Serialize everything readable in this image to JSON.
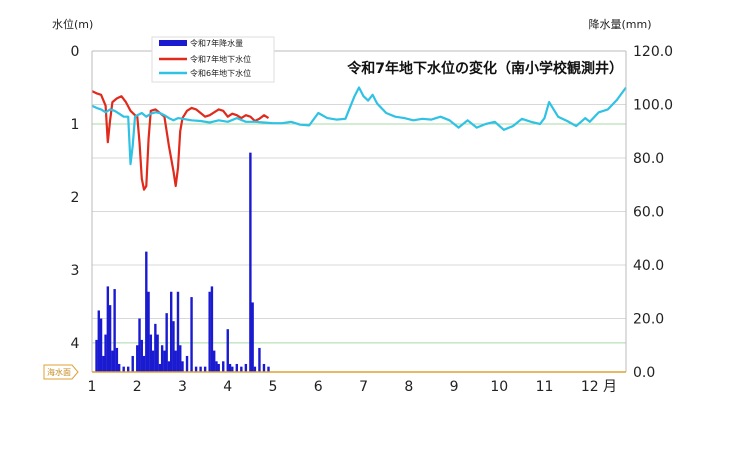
{
  "chart_data": {
    "type": "line",
    "title": "令和7年地下水位の変化（南小学校観測井）",
    "left_axis": {
      "label": "水位(m)",
      "range": [
        0,
        4.4
      ],
      "inverted": true,
      "ticks": [
        "0",
        "1",
        "2",
        "3",
        "4"
      ]
    },
    "right_axis": {
      "label": "降水量(mm)",
      "range": [
        0,
        120
      ],
      "ticks": [
        "0.0",
        "20.0",
        "40.0",
        "60.0",
        "80.0",
        "100.0",
        "120.0"
      ]
    },
    "x_axis": {
      "ticks": [
        "1",
        "2",
        "3",
        "4",
        "5",
        "6",
        "7",
        "8",
        "9",
        "10",
        "11",
        "12"
      ],
      "unit": "月"
    },
    "sea_level_label": "海水面",
    "grid": true,
    "legend": {
      "position": "top-left",
      "entries": [
        {
          "name": "令和7年降水量",
          "color": "#1a1ad0",
          "kind": "bar"
        },
        {
          "name": "令和7年地下水位",
          "color": "#e02a1c",
          "kind": "line"
        },
        {
          "name": "令和6年地下水位",
          "color": "#2fc2e4",
          "kind": "line"
        }
      ]
    },
    "series": [
      {
        "name": "令和7年地下水位",
        "color": "#e02a1c",
        "axis": "left",
        "x": [
          1.0,
          1.1,
          1.2,
          1.3,
          1.35,
          1.4,
          1.45,
          1.55,
          1.65,
          1.75,
          1.85,
          1.95,
          2.0,
          2.05,
          2.1,
          2.15,
          2.2,
          2.25,
          2.3,
          2.4,
          2.5,
          2.6,
          2.7,
          2.8,
          2.85,
          2.9,
          2.95,
          3.0,
          3.1,
          3.2,
          3.3,
          3.4,
          3.5,
          3.6,
          3.7,
          3.8,
          3.9,
          4.0,
          4.1,
          4.2,
          4.3,
          4.4,
          4.5,
          4.6,
          4.7,
          4.8,
          4.9
        ],
        "values": [
          0.55,
          0.58,
          0.6,
          0.75,
          1.25,
          0.95,
          0.7,
          0.65,
          0.62,
          0.7,
          0.82,
          0.88,
          0.9,
          1.25,
          1.75,
          1.9,
          1.85,
          1.2,
          0.82,
          0.8,
          0.85,
          0.9,
          1.3,
          1.65,
          1.85,
          1.6,
          1.1,
          0.92,
          0.82,
          0.78,
          0.8,
          0.85,
          0.9,
          0.88,
          0.84,
          0.8,
          0.82,
          0.9,
          0.86,
          0.88,
          0.92,
          0.88,
          0.9,
          0.96,
          0.93,
          0.88,
          0.92
        ]
      },
      {
        "name": "令和6年地下水位",
        "color": "#2fc2e4",
        "axis": "left",
        "x": [
          1.0,
          1.1,
          1.2,
          1.3,
          1.4,
          1.5,
          1.6,
          1.7,
          1.8,
          1.85,
          1.9,
          1.95,
          2.0,
          2.1,
          2.2,
          2.3,
          2.4,
          2.5,
          2.6,
          2.7,
          2.8,
          2.9,
          3.0,
          3.2,
          3.4,
          3.6,
          3.8,
          4.0,
          4.2,
          4.4,
          4.6,
          4.8,
          5.0,
          5.2,
          5.4,
          5.6,
          5.8,
          6.0,
          6.2,
          6.4,
          6.6,
          6.8,
          6.9,
          7.0,
          7.1,
          7.2,
          7.3,
          7.5,
          7.7,
          7.9,
          8.1,
          8.3,
          8.5,
          8.7,
          8.9,
          9.1,
          9.3,
          9.5,
          9.7,
          9.9,
          10.1,
          10.3,
          10.5,
          10.7,
          10.9,
          11.0,
          11.1,
          11.3,
          11.5,
          11.7,
          11.9,
          12.0,
          12.2,
          12.4,
          12.6,
          12.8
        ],
        "values": [
          0.75,
          0.78,
          0.8,
          0.84,
          0.8,
          0.82,
          0.86,
          0.9,
          0.9,
          1.55,
          1.3,
          0.9,
          0.88,
          0.85,
          0.9,
          0.86,
          0.84,
          0.85,
          0.88,
          0.92,
          0.95,
          0.92,
          0.93,
          0.95,
          0.96,
          0.98,
          0.95,
          0.97,
          0.92,
          0.97,
          0.97,
          0.98,
          0.99,
          0.99,
          0.97,
          1.01,
          1.02,
          0.85,
          0.92,
          0.94,
          0.93,
          0.62,
          0.5,
          0.62,
          0.68,
          0.6,
          0.72,
          0.85,
          0.9,
          0.92,
          0.95,
          0.93,
          0.94,
          0.9,
          0.95,
          1.05,
          0.95,
          1.05,
          1.0,
          0.97,
          1.08,
          1.03,
          0.93,
          0.97,
          1.0,
          0.92,
          0.7,
          0.9,
          0.96,
          1.03,
          0.92,
          0.97,
          0.84,
          0.8,
          0.67,
          0.5
        ]
      },
      {
        "name": "令和7年降水量",
        "color": "#1a1ad0",
        "axis": "right",
        "x": [
          1.1,
          1.15,
          1.2,
          1.25,
          1.3,
          1.35,
          1.4,
          1.45,
          1.5,
          1.55,
          1.6,
          1.7,
          1.8,
          1.9,
          2.0,
          2.05,
          2.1,
          2.15,
          2.2,
          2.25,
          2.3,
          2.35,
          2.4,
          2.45,
          2.5,
          2.55,
          2.6,
          2.65,
          2.7,
          2.75,
          2.8,
          2.85,
          2.9,
          2.95,
          3.0,
          3.1,
          3.2,
          3.3,
          3.4,
          3.5,
          3.6,
          3.65,
          3.7,
          3.75,
          3.8,
          3.9,
          4.0,
          4.05,
          4.1,
          4.2,
          4.3,
          4.4,
          4.5,
          4.52,
          4.55,
          4.6,
          4.7,
          4.8,
          4.9
        ],
        "values": [
          12,
          23,
          20,
          6,
          14,
          32,
          25,
          8,
          31,
          9,
          3,
          2,
          2,
          6,
          10,
          20,
          12,
          6,
          45,
          30,
          14,
          8,
          18,
          14,
          3,
          10,
          8,
          22,
          4,
          30,
          19,
          8,
          30,
          10,
          4,
          6,
          28,
          2,
          2,
          2,
          30,
          32,
          8,
          4,
          3,
          4,
          16,
          3,
          2,
          3,
          2,
          3,
          82,
          20,
          26,
          2,
          9,
          3,
          2
        ]
      }
    ]
  }
}
